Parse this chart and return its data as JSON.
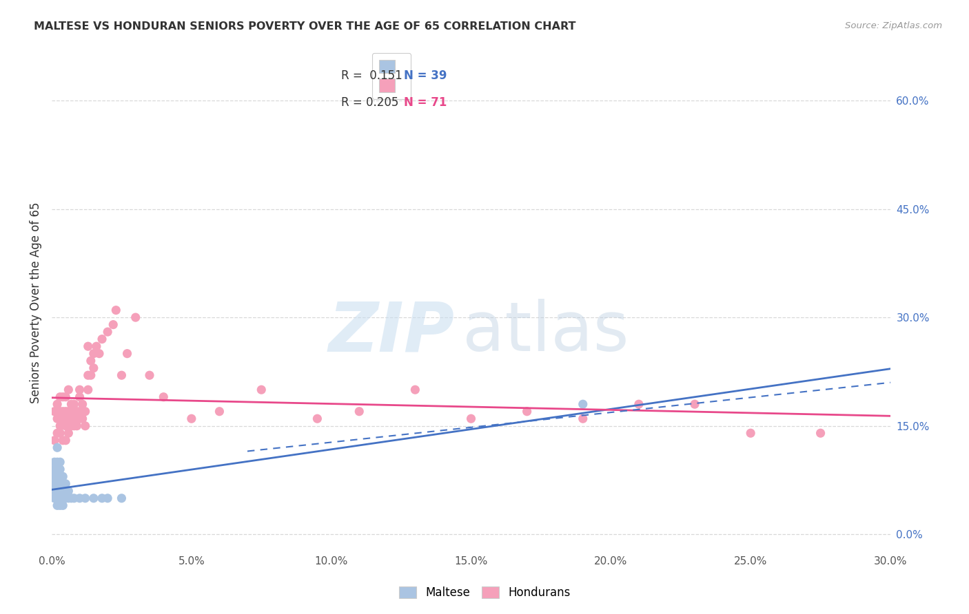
{
  "title": "MALTESE VS HONDURAN SENIORS POVERTY OVER THE AGE OF 65 CORRELATION CHART",
  "source": "Source: ZipAtlas.com",
  "ylabel": "Seniors Poverty Over the Age of 65",
  "xlim": [
    0.0,
    0.3
  ],
  "ylim": [
    -0.02,
    0.66
  ],
  "x_tick_vals": [
    0.0,
    0.05,
    0.1,
    0.15,
    0.2,
    0.25,
    0.3
  ],
  "y_tick_vals": [
    0.0,
    0.15,
    0.3,
    0.45,
    0.6
  ],
  "legend_r_maltese": "0.151",
  "legend_n_maltese": "39",
  "legend_r_honduran": "0.205",
  "legend_n_honduran": "71",
  "maltese_color": "#aac4e2",
  "honduran_color": "#f5a0ba",
  "maltese_line_color": "#4472c4",
  "honduran_line_color": "#e8488a",
  "background_color": "#ffffff",
  "grid_color": "#d8d8d8",
  "maltese_line": [
    0.0,
    0.07,
    0.05,
    0.085
  ],
  "honduran_line": [
    0.0,
    0.175,
    0.3,
    0.27
  ],
  "dashed_line": [
    0.07,
    0.115,
    0.3,
    0.21
  ],
  "maltese_x": [
    0.001,
    0.001,
    0.001,
    0.001,
    0.001,
    0.001,
    0.002,
    0.002,
    0.002,
    0.002,
    0.002,
    0.002,
    0.002,
    0.003,
    0.003,
    0.003,
    0.003,
    0.003,
    0.003,
    0.003,
    0.004,
    0.004,
    0.004,
    0.004,
    0.004,
    0.005,
    0.005,
    0.005,
    0.006,
    0.006,
    0.007,
    0.008,
    0.01,
    0.012,
    0.015,
    0.018,
    0.02,
    0.025,
    0.19
  ],
  "maltese_y": [
    0.05,
    0.06,
    0.07,
    0.08,
    0.09,
    0.1,
    0.04,
    0.05,
    0.06,
    0.07,
    0.08,
    0.1,
    0.12,
    0.04,
    0.05,
    0.06,
    0.07,
    0.08,
    0.09,
    0.1,
    0.04,
    0.05,
    0.06,
    0.07,
    0.08,
    0.05,
    0.06,
    0.07,
    0.05,
    0.06,
    0.05,
    0.05,
    0.05,
    0.05,
    0.05,
    0.05,
    0.05,
    0.05,
    0.18
  ],
  "honduran_x": [
    0.001,
    0.001,
    0.002,
    0.002,
    0.002,
    0.003,
    0.003,
    0.003,
    0.003,
    0.004,
    0.004,
    0.004,
    0.004,
    0.005,
    0.005,
    0.005,
    0.005,
    0.005,
    0.006,
    0.006,
    0.006,
    0.006,
    0.006,
    0.007,
    0.007,
    0.007,
    0.007,
    0.008,
    0.008,
    0.008,
    0.009,
    0.009,
    0.01,
    0.01,
    0.01,
    0.01,
    0.011,
    0.011,
    0.012,
    0.012,
    0.013,
    0.013,
    0.013,
    0.014,
    0.014,
    0.015,
    0.015,
    0.016,
    0.017,
    0.018,
    0.02,
    0.022,
    0.023,
    0.025,
    0.027,
    0.03,
    0.035,
    0.04,
    0.05,
    0.06,
    0.075,
    0.095,
    0.11,
    0.13,
    0.15,
    0.17,
    0.19,
    0.21,
    0.23,
    0.25,
    0.275
  ],
  "honduran_y": [
    0.13,
    0.17,
    0.14,
    0.16,
    0.18,
    0.14,
    0.15,
    0.17,
    0.19,
    0.13,
    0.16,
    0.17,
    0.19,
    0.13,
    0.15,
    0.16,
    0.17,
    0.19,
    0.14,
    0.15,
    0.16,
    0.17,
    0.2,
    0.15,
    0.16,
    0.17,
    0.18,
    0.15,
    0.16,
    0.18,
    0.15,
    0.17,
    0.16,
    0.17,
    0.19,
    0.2,
    0.16,
    0.18,
    0.15,
    0.17,
    0.2,
    0.22,
    0.26,
    0.22,
    0.24,
    0.23,
    0.25,
    0.26,
    0.25,
    0.27,
    0.28,
    0.29,
    0.31,
    0.22,
    0.25,
    0.3,
    0.22,
    0.19,
    0.16,
    0.17,
    0.2,
    0.16,
    0.17,
    0.2,
    0.16,
    0.17,
    0.16,
    0.18,
    0.18,
    0.14,
    0.14
  ]
}
